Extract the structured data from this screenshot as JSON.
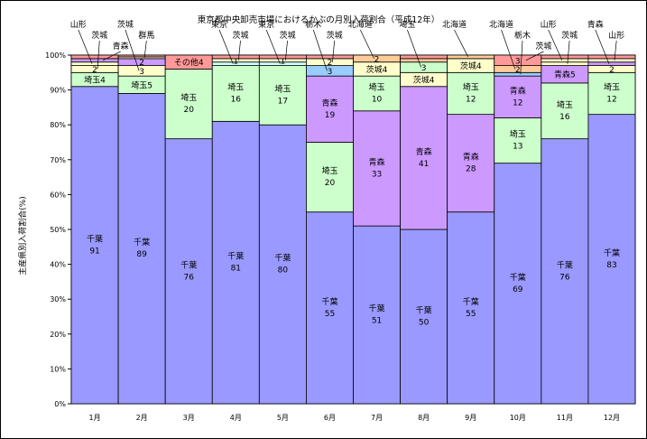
{
  "chart_data": {
    "type": "bar",
    "stacked": true,
    "title": "東京都中央卸売市場におけるかぶの月別入荷割合（平成12年）",
    "ylabel": "主産県別入荷割合(%)",
    "xlabel": "",
    "ylim": [
      0,
      100
    ],
    "yticks": [
      "0%",
      "10%",
      "20%",
      "30%",
      "40%",
      "50%",
      "60%",
      "70%",
      "80%",
      "90%",
      "100%"
    ],
    "categories": [
      "1月",
      "2月",
      "3月",
      "4月",
      "5月",
      "6月",
      "7月",
      "8月",
      "9月",
      "10月",
      "11月",
      "12月"
    ],
    "grid": false,
    "legend": "none",
    "colors": {
      "千葉": "#9999ff",
      "埼玉": "#ccffcc",
      "青森": "#cc99ff",
      "茨城": "#ffffcc",
      "北海道": "#ffcc99",
      "栃木": "#99ccff",
      "東京": "#ccffff",
      "群馬": "#ffffcc",
      "その他": "#ff9999",
      "山形": "#ffffcc"
    },
    "bars": [
      {
        "month": "1月",
        "segments": [
          {
            "name": "千葉",
            "value": 91,
            "label": "千葉\n91"
          },
          {
            "name": "埼玉",
            "value": 4,
            "label": "埼玉4"
          },
          {
            "name": "茨城",
            "value": 2,
            "label": "2"
          },
          {
            "name": "山形",
            "value": 1,
            "label": ""
          },
          {
            "name": "青森",
            "value": 1,
            "label": ""
          },
          {
            "name": "その他",
            "value": 1,
            "label": ""
          }
        ]
      },
      {
        "month": "2月",
        "segments": [
          {
            "name": "千葉",
            "value": 89,
            "label": "千葉\n89"
          },
          {
            "name": "埼玉",
            "value": 5,
            "label": "埼玉5"
          },
          {
            "name": "茨城",
            "value": 3,
            "label": "3"
          },
          {
            "name": "青森",
            "value": 2,
            "label": "2"
          },
          {
            "name": "群馬",
            "value": 0.5,
            "label": ""
          },
          {
            "name": "その他",
            "value": 0.5,
            "label": ""
          }
        ]
      },
      {
        "month": "3月",
        "segments": [
          {
            "name": "千葉",
            "value": 76,
            "label": "千葉\n76"
          },
          {
            "name": "埼玉",
            "value": 20,
            "label": "埼玉\n20"
          },
          {
            "name": "その他",
            "value": 4,
            "label": "その他4"
          }
        ]
      },
      {
        "month": "4月",
        "segments": [
          {
            "name": "千葉",
            "value": 81,
            "label": "千葉\n81"
          },
          {
            "name": "埼玉",
            "value": 16,
            "label": "埼玉\n16"
          },
          {
            "name": "東京",
            "value": 1,
            "label": ""
          },
          {
            "name": "茨城",
            "value": 1,
            "label": "1"
          },
          {
            "name": "その他",
            "value": 1,
            "label": ""
          }
        ]
      },
      {
        "month": "5月",
        "segments": [
          {
            "name": "千葉",
            "value": 80,
            "label": "千葉\n80"
          },
          {
            "name": "埼玉",
            "value": 17,
            "label": "埼玉\n17"
          },
          {
            "name": "東京",
            "value": 1,
            "label": ""
          },
          {
            "name": "茨城",
            "value": 1,
            "label": "1"
          },
          {
            "name": "その他",
            "value": 1,
            "label": ""
          }
        ]
      },
      {
        "month": "6月",
        "segments": [
          {
            "name": "千葉",
            "value": 55,
            "label": "千葉\n55"
          },
          {
            "name": "埼玉",
            "value": 20,
            "label": "埼玉\n20"
          },
          {
            "name": "青森",
            "value": 19,
            "label": "青森\n19"
          },
          {
            "name": "栃木",
            "value": 3,
            "label": "3"
          },
          {
            "name": "茨城",
            "value": 2,
            "label": "2"
          },
          {
            "name": "その他",
            "value": 1,
            "label": ""
          }
        ]
      },
      {
        "month": "7月",
        "segments": [
          {
            "name": "千葉",
            "value": 51,
            "label": "千葉\n51"
          },
          {
            "name": "青森",
            "value": 33,
            "label": "青森\n33"
          },
          {
            "name": "埼玉",
            "value": 10,
            "label": "埼玉\n10"
          },
          {
            "name": "茨城",
            "value": 4,
            "label": "茨城4"
          },
          {
            "name": "北海道",
            "value": 2,
            "label": "2"
          }
        ]
      },
      {
        "month": "8月",
        "segments": [
          {
            "name": "千葉",
            "value": 50,
            "label": "千葉\n50"
          },
          {
            "name": "青森",
            "value": 41,
            "label": "青森\n41"
          },
          {
            "name": "茨城",
            "value": 4,
            "label": "茨城4"
          },
          {
            "name": "埼玉",
            "value": 3,
            "label": "3"
          },
          {
            "name": "北海道",
            "value": 1,
            "label": ""
          },
          {
            "name": "その他",
            "value": 1,
            "label": ""
          }
        ]
      },
      {
        "month": "9月",
        "segments": [
          {
            "name": "千葉",
            "value": 55,
            "label": "千葉\n55"
          },
          {
            "name": "青森",
            "value": 28,
            "label": "青森\n28"
          },
          {
            "name": "埼玉",
            "value": 12,
            "label": "埼玉\n12"
          },
          {
            "name": "茨城",
            "value": 4,
            "label": "茨城4"
          },
          {
            "name": "北海道",
            "value": 1,
            "label": ""
          }
        ]
      },
      {
        "month": "10月",
        "segments": [
          {
            "name": "千葉",
            "value": 69,
            "label": "千葉\n69"
          },
          {
            "name": "埼玉",
            "value": 13,
            "label": "埼玉\n13"
          },
          {
            "name": "青森",
            "value": 12,
            "label": "青森\n12"
          },
          {
            "name": "栃木",
            "value": 1,
            "label": ""
          },
          {
            "name": "北海道",
            "value": 2,
            "label": "2"
          },
          {
            "name": "その他",
            "value": 3,
            "label": "3"
          }
        ]
      },
      {
        "month": "11月",
        "segments": [
          {
            "name": "千葉",
            "value": 76,
            "label": "千葉\n76"
          },
          {
            "name": "埼玉",
            "value": 16,
            "label": "埼玉\n16"
          },
          {
            "name": "青森",
            "value": 5,
            "label": "青森5"
          },
          {
            "name": "茨城",
            "value": 1,
            "label": ""
          },
          {
            "name": "山形",
            "value": 1,
            "label": ""
          },
          {
            "name": "その他",
            "value": 1,
            "label": ""
          }
        ]
      },
      {
        "month": "12月",
        "segments": [
          {
            "name": "千葉",
            "value": 83,
            "label": "千葉\n83"
          },
          {
            "name": "埼玉",
            "value": 12,
            "label": "埼玉\n12"
          },
          {
            "name": "茨城",
            "value": 2,
            "label": "2"
          },
          {
            "name": "青森",
            "value": 1,
            "label": ""
          },
          {
            "name": "山形",
            "value": 1,
            "label": ""
          },
          {
            "name": "その他",
            "value": 1,
            "label": ""
          }
        ]
      }
    ],
    "callouts": [
      {
        "bar": 0,
        "segment": "山形",
        "text": "山形"
      },
      {
        "bar": 0,
        "segment": "茨城",
        "text": "茨城"
      },
      {
        "bar": 0,
        "segment": "青森",
        "text": "青森"
      },
      {
        "bar": 1,
        "segment": "茨城",
        "text": "茨城"
      },
      {
        "bar": 1,
        "segment": "群馬",
        "text": "群馬"
      },
      {
        "bar": 3,
        "segment": "東京",
        "text": "東京"
      },
      {
        "bar": 3,
        "segment": "茨城",
        "text": "茨城"
      },
      {
        "bar": 4,
        "segment": "東京",
        "text": "東京"
      },
      {
        "bar": 4,
        "segment": "茨城",
        "text": "茨城"
      },
      {
        "bar": 5,
        "segment": "栃木",
        "text": "栃木"
      },
      {
        "bar": 5,
        "segment": "茨城",
        "text": "茨城"
      },
      {
        "bar": 6,
        "segment": "北海道",
        "text": "北海道"
      },
      {
        "bar": 7,
        "segment": "埼玉",
        "text": "埼玉"
      },
      {
        "bar": 8,
        "segment": "北海道",
        "text": "北海道"
      },
      {
        "bar": 9,
        "segment": "北海道",
        "text": "北海道"
      },
      {
        "bar": 9,
        "segment": "栃木",
        "text": "栃木"
      },
      {
        "bar": 9,
        "segment": "その他",
        "text": "茨城"
      },
      {
        "bar": 10,
        "segment": "山形",
        "text": "山形"
      },
      {
        "bar": 10,
        "segment": "茨城",
        "text": "茨城"
      },
      {
        "bar": 11,
        "segment": "青森",
        "text": "青森"
      },
      {
        "bar": 11,
        "segment": "山形",
        "text": "山形"
      }
    ]
  }
}
